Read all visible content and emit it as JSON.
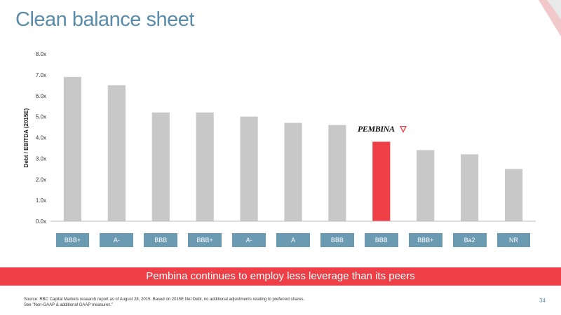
{
  "slide": {
    "title": "Clean balance sheet",
    "banner": "Pembina continues to employ less leverage than its peers",
    "footnote_line1": "Source: RBC Capital Markets research report as of August 28, 2015. Based on 2015E Net Debt, no additional adjustments relating to preferred shares.",
    "footnote_line2": "See \"Non-GAAP & additional GAAP measures.\"",
    "page_number": "34",
    "logo_text": "PEMBINA"
  },
  "colors": {
    "bar_default": "#c8c8c8",
    "bar_highlight": "#ee3f46",
    "title": "#5a8ba8",
    "rating_box": "#6b9ab3",
    "banner": "#ee3f46"
  },
  "chart_data": {
    "type": "bar",
    "ylabel": "Debt / EBITDA (2015E)",
    "ylim": [
      0,
      8
    ],
    "yticks": [
      "0.0x",
      "1.0x",
      "2.0x",
      "3.0x",
      "4.0x",
      "5.0x",
      "6.0x",
      "7.0x",
      "8.0x"
    ],
    "grid": false,
    "categories": [
      "BBB+",
      "A-",
      "BBB",
      "BBB+",
      "A-",
      "A",
      "BBB",
      "BBB",
      "BBB+",
      "Ba2",
      "NR"
    ],
    "values": [
      6.9,
      6.5,
      5.2,
      5.2,
      5.0,
      4.7,
      4.6,
      3.8,
      3.4,
      3.2,
      2.5
    ],
    "highlight_index": 7
  }
}
